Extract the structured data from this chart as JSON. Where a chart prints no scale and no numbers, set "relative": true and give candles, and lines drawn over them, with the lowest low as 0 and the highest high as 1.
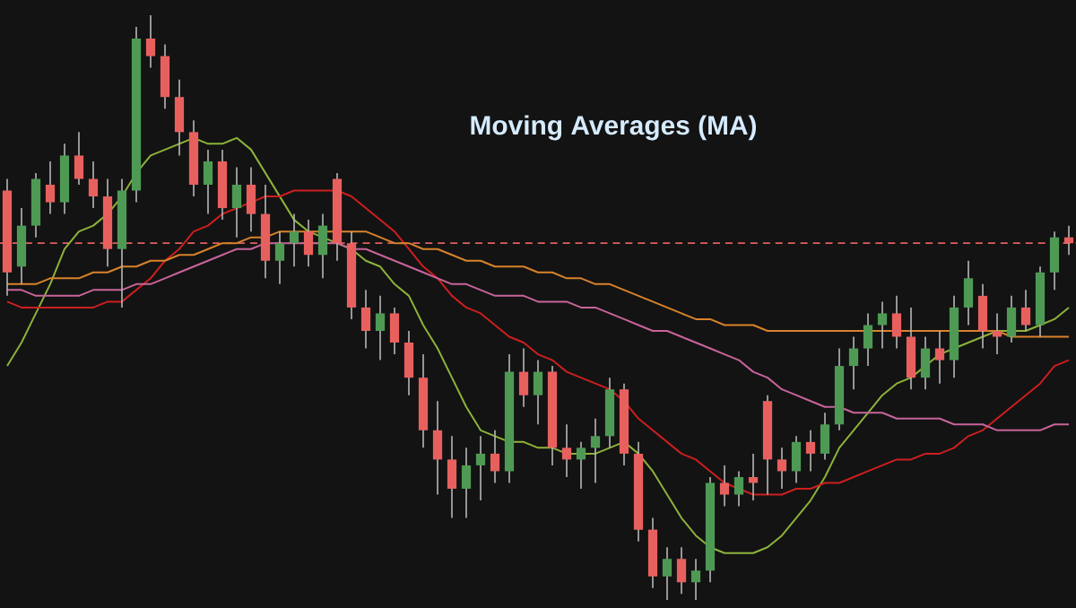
{
  "chart_data": {
    "type": "candlestick",
    "title": "Moving Averages (MA)",
    "relative": true,
    "categories": [
      null,
      null,
      null,
      null,
      null,
      null,
      null,
      null,
      null,
      null,
      null,
      null,
      null,
      null,
      null,
      null,
      null,
      null,
      null,
      null,
      null,
      null,
      null,
      null,
      null,
      null,
      null,
      null,
      null,
      null,
      null,
      null,
      null,
      null,
      null,
      null,
      null,
      null,
      null,
      null,
      null,
      null,
      null,
      null,
      null,
      null,
      null,
      null,
      null,
      null,
      null,
      null,
      null,
      null,
      null,
      null,
      null,
      null,
      null,
      null,
      null,
      null,
      null,
      null,
      null,
      null,
      null,
      null,
      null,
      null,
      null,
      null,
      null,
      null,
      null
    ],
    "ohlc": [
      [
        0.7,
        0.72,
        0.52,
        0.56
      ],
      [
        0.57,
        0.67,
        0.54,
        0.64
      ],
      [
        0.64,
        0.73,
        0.62,
        0.72
      ],
      [
        0.71,
        0.75,
        0.66,
        0.68
      ],
      [
        0.68,
        0.78,
        0.66,
        0.76
      ],
      [
        0.76,
        0.8,
        0.71,
        0.72
      ],
      [
        0.72,
        0.75,
        0.67,
        0.69
      ],
      [
        0.69,
        0.72,
        0.57,
        0.6
      ],
      [
        0.6,
        0.72,
        0.5,
        0.7
      ],
      [
        0.7,
        0.98,
        0.68,
        0.96
      ],
      [
        0.96,
        1.0,
        0.91,
        0.93
      ],
      [
        0.93,
        0.95,
        0.84,
        0.86
      ],
      [
        0.86,
        0.89,
        0.76,
        0.8
      ],
      [
        0.8,
        0.82,
        0.69,
        0.71
      ],
      [
        0.71,
        0.77,
        0.66,
        0.75
      ],
      [
        0.75,
        0.77,
        0.65,
        0.67
      ],
      [
        0.67,
        0.74,
        0.62,
        0.71
      ],
      [
        0.71,
        0.74,
        0.63,
        0.66
      ],
      [
        0.66,
        0.71,
        0.55,
        0.58
      ],
      [
        0.58,
        0.63,
        0.54,
        0.61
      ],
      [
        0.61,
        0.66,
        0.57,
        0.63
      ],
      [
        0.63,
        0.65,
        0.57,
        0.59
      ],
      [
        0.59,
        0.66,
        0.55,
        0.64
      ],
      [
        0.72,
        0.73,
        0.58,
        0.61
      ],
      [
        0.61,
        0.63,
        0.48,
        0.5
      ],
      [
        0.5,
        0.53,
        0.43,
        0.46
      ],
      [
        0.46,
        0.52,
        0.41,
        0.49
      ],
      [
        0.49,
        0.5,
        0.42,
        0.44
      ],
      [
        0.44,
        0.46,
        0.35,
        0.38
      ],
      [
        0.38,
        0.42,
        0.26,
        0.29
      ],
      [
        0.29,
        0.34,
        0.18,
        0.24
      ],
      [
        0.24,
        0.28,
        0.14,
        0.19
      ],
      [
        0.19,
        0.26,
        0.14,
        0.23
      ],
      [
        0.23,
        0.28,
        0.17,
        0.25
      ],
      [
        0.25,
        0.29,
        0.2,
        0.22
      ],
      [
        0.22,
        0.42,
        0.2,
        0.39
      ],
      [
        0.39,
        0.43,
        0.33,
        0.35
      ],
      [
        0.35,
        0.41,
        0.3,
        0.39
      ],
      [
        0.39,
        0.4,
        0.23,
        0.26
      ],
      [
        0.26,
        0.3,
        0.21,
        0.24
      ],
      [
        0.24,
        0.27,
        0.19,
        0.26
      ],
      [
        0.26,
        0.31,
        0.2,
        0.28
      ],
      [
        0.28,
        0.38,
        0.26,
        0.36
      ],
      [
        0.36,
        0.37,
        0.23,
        0.25
      ],
      [
        0.25,
        0.27,
        0.1,
        0.12
      ],
      [
        0.12,
        0.14,
        0.02,
        0.04
      ],
      [
        0.04,
        0.09,
        0.0,
        0.07
      ],
      [
        0.07,
        0.09,
        0.01,
        0.03
      ],
      [
        0.03,
        0.07,
        0.0,
        0.05
      ],
      [
        0.05,
        0.21,
        0.03,
        0.2
      ],
      [
        0.2,
        0.23,
        0.16,
        0.18
      ],
      [
        0.18,
        0.22,
        0.16,
        0.21
      ],
      [
        0.21,
        0.25,
        0.17,
        0.2
      ],
      [
        0.34,
        0.35,
        0.18,
        0.24
      ],
      [
        0.24,
        0.26,
        0.19,
        0.22
      ],
      [
        0.22,
        0.28,
        0.2,
        0.27
      ],
      [
        0.27,
        0.29,
        0.22,
        0.25
      ],
      [
        0.25,
        0.32,
        0.24,
        0.3
      ],
      [
        0.3,
        0.43,
        0.29,
        0.4
      ],
      [
        0.4,
        0.45,
        0.36,
        0.43
      ],
      [
        0.43,
        0.49,
        0.4,
        0.47
      ],
      [
        0.47,
        0.51,
        0.43,
        0.49
      ],
      [
        0.49,
        0.52,
        0.43,
        0.45
      ],
      [
        0.45,
        0.5,
        0.36,
        0.38
      ],
      [
        0.38,
        0.45,
        0.36,
        0.43
      ],
      [
        0.43,
        0.46,
        0.37,
        0.41
      ],
      [
        0.41,
        0.52,
        0.38,
        0.5
      ],
      [
        0.5,
        0.58,
        0.47,
        0.55
      ],
      [
        0.52,
        0.54,
        0.43,
        0.46
      ],
      [
        0.46,
        0.49,
        0.42,
        0.45
      ],
      [
        0.45,
        0.52,
        0.44,
        0.5
      ],
      [
        0.5,
        0.53,
        0.46,
        0.47
      ],
      [
        0.47,
        0.57,
        0.45,
        0.56
      ],
      [
        0.56,
        0.63,
        0.53,
        0.62
      ],
      [
        0.62,
        0.64,
        0.59,
        0.61
      ]
    ],
    "series": [
      {
        "type": "line",
        "color": "#8db33a",
        "values": [
          0.4,
          0.44,
          0.49,
          0.54,
          0.6,
          0.63,
          0.64,
          0.66,
          0.69,
          0.73,
          0.76,
          0.77,
          0.78,
          0.79,
          0.78,
          0.78,
          0.79,
          0.77,
          0.73,
          0.69,
          0.65,
          0.63,
          0.62,
          0.61,
          0.6,
          0.58,
          0.57,
          0.54,
          0.52,
          0.47,
          0.43,
          0.38,
          0.33,
          0.29,
          0.28,
          0.27,
          0.27,
          0.26,
          0.26,
          0.25,
          0.25,
          0.25,
          0.26,
          0.27,
          0.25,
          0.22,
          0.18,
          0.14,
          0.11,
          0.09,
          0.08,
          0.08,
          0.08,
          0.09,
          0.11,
          0.14,
          0.17,
          0.21,
          0.26,
          0.29,
          0.32,
          0.35,
          0.37,
          0.38,
          0.4,
          0.42,
          0.43,
          0.44,
          0.45,
          0.46,
          0.46,
          0.46,
          0.47,
          0.48,
          0.5
        ]
      },
      {
        "type": "line",
        "color": "#cc1f1f",
        "values": [
          0.51,
          0.5,
          0.5,
          0.5,
          0.5,
          0.5,
          0.5,
          0.51,
          0.51,
          0.53,
          0.55,
          0.58,
          0.6,
          0.63,
          0.64,
          0.66,
          0.67,
          0.68,
          0.69,
          0.69,
          0.7,
          0.7,
          0.7,
          0.7,
          0.69,
          0.67,
          0.65,
          0.63,
          0.6,
          0.57,
          0.55,
          0.52,
          0.5,
          0.49,
          0.47,
          0.45,
          0.44,
          0.42,
          0.41,
          0.39,
          0.38,
          0.37,
          0.36,
          0.34,
          0.31,
          0.29,
          0.27,
          0.25,
          0.24,
          0.22,
          0.2,
          0.19,
          0.18,
          0.18,
          0.18,
          0.19,
          0.19,
          0.2,
          0.2,
          0.21,
          0.22,
          0.23,
          0.24,
          0.24,
          0.25,
          0.25,
          0.26,
          0.28,
          0.29,
          0.31,
          0.33,
          0.35,
          0.37,
          0.4,
          0.41
        ]
      },
      {
        "type": "line",
        "color": "#d9822b",
        "values": [
          0.54,
          0.54,
          0.54,
          0.55,
          0.55,
          0.55,
          0.56,
          0.56,
          0.57,
          0.57,
          0.58,
          0.58,
          0.59,
          0.59,
          0.6,
          0.61,
          0.61,
          0.62,
          0.62,
          0.63,
          0.63,
          0.63,
          0.63,
          0.63,
          0.63,
          0.63,
          0.62,
          0.61,
          0.61,
          0.6,
          0.6,
          0.59,
          0.58,
          0.58,
          0.57,
          0.57,
          0.57,
          0.56,
          0.56,
          0.55,
          0.55,
          0.54,
          0.54,
          0.53,
          0.52,
          0.51,
          0.5,
          0.49,
          0.48,
          0.48,
          0.47,
          0.47,
          0.47,
          0.46,
          0.46,
          0.46,
          0.46,
          0.46,
          0.46,
          0.46,
          0.46,
          0.46,
          0.46,
          0.46,
          0.46,
          0.46,
          0.46,
          0.46,
          0.46,
          0.46,
          0.45,
          0.45,
          0.45,
          0.45,
          0.45
        ]
      },
      {
        "type": "line",
        "color": "#c8649a",
        "values": [
          0.53,
          0.53,
          0.52,
          0.52,
          0.52,
          0.52,
          0.53,
          0.53,
          0.53,
          0.54,
          0.54,
          0.55,
          0.56,
          0.57,
          0.58,
          0.59,
          0.6,
          0.6,
          0.61,
          0.61,
          0.61,
          0.61,
          0.61,
          0.61,
          0.6,
          0.6,
          0.59,
          0.58,
          0.57,
          0.56,
          0.55,
          0.54,
          0.54,
          0.53,
          0.52,
          0.52,
          0.52,
          0.51,
          0.51,
          0.51,
          0.5,
          0.5,
          0.49,
          0.48,
          0.47,
          0.46,
          0.46,
          0.45,
          0.44,
          0.43,
          0.42,
          0.41,
          0.39,
          0.38,
          0.36,
          0.35,
          0.34,
          0.33,
          0.33,
          0.32,
          0.32,
          0.32,
          0.31,
          0.31,
          0.31,
          0.31,
          0.3,
          0.3,
          0.3,
          0.29,
          0.29,
          0.29,
          0.29,
          0.3,
          0.3
        ]
      }
    ],
    "ref_lines": [
      {
        "axis": "y",
        "value": 0.61,
        "color": "#e0605f",
        "line_style": "dashed"
      }
    ]
  }
}
